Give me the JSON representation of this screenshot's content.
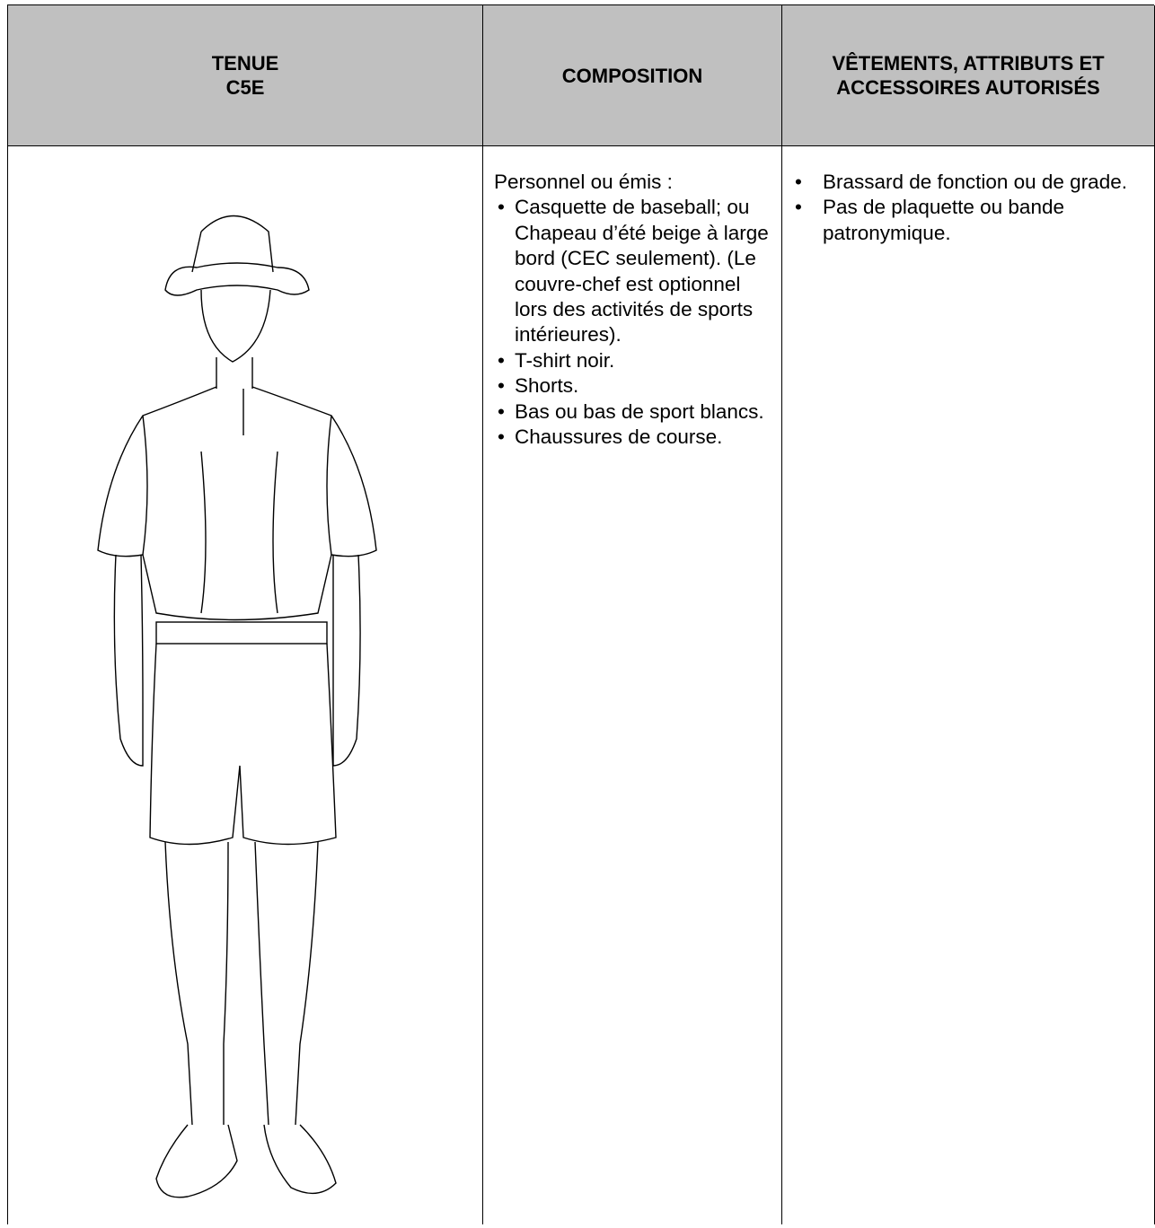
{
  "table": {
    "header": [
      [
        "TENUE",
        "C5E"
      ],
      [
        "COMPOSITION"
      ],
      [
        "VÊTEMENTS, ATTRIBUTS ET ACCESSOIRES AUTORISÉS"
      ]
    ],
    "composition": {
      "intro": "Personnel ou émis :",
      "items": [
        "Casquette de baseball; ou Chapeau d’été beige à large bord (CEC seulement). (Le couvre-chef est optionnel lors des activités de sports intérieures).",
        "T-shirt noir.",
        "Shorts.",
        "Bas ou bas de sport blancs.",
        "Chaussures de course."
      ]
    },
    "accessories": [
      "Brassard de fonction ou de grade.",
      "Pas de plaquette ou bande patronymique."
    ]
  }
}
